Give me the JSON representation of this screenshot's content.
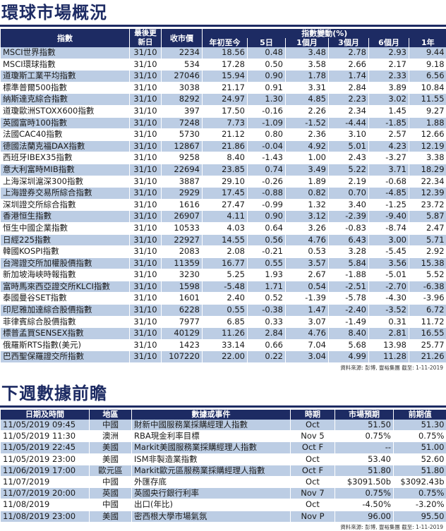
{
  "market": {
    "title": "環球市場概況",
    "headers": {
      "index": "指數",
      "date": "最後更新日",
      "close": "收市價",
      "change": "指數變動(%)",
      "periods": [
        "年初至今",
        "5日",
        "1個月",
        "3個月",
        "6個月",
        "1年"
      ]
    },
    "rows": [
      {
        "name": "MSCI世界指數",
        "date": "31/10",
        "close": "2234",
        "ytd": "18.56",
        "d5": "0.48",
        "m1": "3.48",
        "m3": "2.78",
        "m6": "2.93",
        "y1": "9.44"
      },
      {
        "name": "MSCI環球指數",
        "date": "31/10",
        "close": "534",
        "ytd": "17.28",
        "d5": "0.50",
        "m1": "3.58",
        "m3": "2.66",
        "m6": "2.17",
        "y1": "9.18"
      },
      {
        "name": "道瓊斯工業平均指數",
        "date": "31/10",
        "close": "27046",
        "ytd": "15.94",
        "d5": "0.90",
        "m1": "1.78",
        "m3": "1.74",
        "m6": "2.33",
        "y1": "6.56"
      },
      {
        "name": "標準普爾500指數",
        "date": "31/10",
        "close": "3038",
        "ytd": "21.17",
        "d5": "0.91",
        "m1": "3.31",
        "m3": "2.84",
        "m6": "3.89",
        "y1": "10.84"
      },
      {
        "name": "納斯達克綜合指數",
        "date": "31/10",
        "close": "8292",
        "ytd": "24.97",
        "d5": "1.30",
        "m1": "4.85",
        "m3": "2.23",
        "m6": "3.02",
        "y1": "11.55"
      },
      {
        "name": "道瓊歐洲STOXX600指數",
        "date": "31/10",
        "close": "397",
        "ytd": "17.50",
        "d5": "-0.16",
        "m1": "2.26",
        "m3": "2.34",
        "m6": "1.45",
        "y1": "9.27"
      },
      {
        "name": "英國富時100指數",
        "date": "31/10",
        "close": "7248",
        "ytd": "7.73",
        "d5": "-1.09",
        "m1": "-1.52",
        "m3": "-4.44",
        "m6": "-1.85",
        "y1": "1.88"
      },
      {
        "name": "法國CAC40指數",
        "date": "31/10",
        "close": "5730",
        "ytd": "21.12",
        "d5": "0.80",
        "m1": "2.36",
        "m3": "3.10",
        "m6": "2.57",
        "y1": "12.66"
      },
      {
        "name": "德國法蘭克福DAX指數",
        "date": "31/10",
        "close": "12867",
        "ytd": "21.86",
        "d5": "-0.04",
        "m1": "4.92",
        "m3": "5.01",
        "m6": "4.23",
        "y1": "12.19"
      },
      {
        "name": "西班牙IBEX35指數",
        "date": "31/10",
        "close": "9258",
        "ytd": "8.40",
        "d5": "-1.43",
        "m1": "1.00",
        "m3": "2.43",
        "m6": "-3.27",
        "y1": "3.38"
      },
      {
        "name": "意大利富時MIB指數",
        "date": "31/10",
        "close": "22694",
        "ytd": "23.85",
        "d5": "0.74",
        "m1": "3.49",
        "m3": "5.22",
        "m6": "3.71",
        "y1": "18.29"
      },
      {
        "name": "上海深圳滬深300指數",
        "date": "31/10",
        "close": "3887",
        "ytd": "29.10",
        "d5": "-0.26",
        "m1": "1.89",
        "m3": "2.19",
        "m6": "-0.68",
        "y1": "22.34"
      },
      {
        "name": "上海證券交易所綜合指數",
        "date": "31/10",
        "close": "2929",
        "ytd": "17.45",
        "d5": "-0.88",
        "m1": "0.82",
        "m3": "0.70",
        "m6": "-4.85",
        "y1": "12.39"
      },
      {
        "name": "深圳證交所綜合指數",
        "date": "31/10",
        "close": "1616",
        "ytd": "27.47",
        "d5": "-0.99",
        "m1": "1.32",
        "m3": "3.40",
        "m6": "-1.25",
        "y1": "23.72"
      },
      {
        "name": "香港恒生指數",
        "date": "31/10",
        "close": "26907",
        "ytd": "4.11",
        "d5": "0.90",
        "m1": "3.12",
        "m3": "-2.39",
        "m6": "-9.40",
        "y1": "5.87"
      },
      {
        "name": "恒生中國企業指數",
        "date": "31/10",
        "close": "10533",
        "ytd": "4.03",
        "d5": "0.64",
        "m1": "3.26",
        "m3": "-0.83",
        "m6": "-8.74",
        "y1": "2.47"
      },
      {
        "name": "日經225指數",
        "date": "31/10",
        "close": "22927",
        "ytd": "14.55",
        "d5": "0.56",
        "m1": "4.76",
        "m3": "6.43",
        "m6": "3.00",
        "y1": "5.71"
      },
      {
        "name": "韓國KOSPI指數",
        "date": "31/10",
        "close": "2083",
        "ytd": "2.08",
        "d5": "-0.21",
        "m1": "0.53",
        "m3": "3.28",
        "m6": "-5.45",
        "y1": "2.92"
      },
      {
        "name": "台灣證交所加權股價指數",
        "date": "31/10",
        "close": "11359",
        "ytd": "16.77",
        "d5": "0.55",
        "m1": "3.57",
        "m3": "5.84",
        "m6": "3.56",
        "y1": "15.38"
      },
      {
        "name": "新加坡海峽時報指數",
        "date": "31/10",
        "close": "3230",
        "ytd": "5.25",
        "d5": "1.93",
        "m1": "2.67",
        "m3": "-1.88",
        "m6": "-5.01",
        "y1": "5.52"
      },
      {
        "name": "富時馬來西亞證交所KLCI指數",
        "date": "31/10",
        "close": "1598",
        "ytd": "-5.48",
        "d5": "1.71",
        "m1": "0.54",
        "m3": "-2.51",
        "m6": "-2.70",
        "y1": "-6.38"
      },
      {
        "name": "泰國曼谷SET指數",
        "date": "31/10",
        "close": "1601",
        "ytd": "2.40",
        "d5": "0.52",
        "m1": "-1.39",
        "m3": "-5.78",
        "m6": "-4.30",
        "y1": "-3.96"
      },
      {
        "name": "印尼雅加達綜合股價指數",
        "date": "31/10",
        "close": "6228",
        "ytd": "0.55",
        "d5": "-0.38",
        "m1": "1.47",
        "m3": "-2.40",
        "m6": "-3.52",
        "y1": "6.72"
      },
      {
        "name": "菲律賓綜合股價指數",
        "date": "31/10",
        "close": "7977",
        "ytd": "6.85",
        "d5": "0.33",
        "m1": "3.07",
        "m3": "-1.49",
        "m6": "0.31",
        "y1": "11.72"
      },
      {
        "name": "標普孟買SENSEX指數",
        "date": "31/10",
        "close": "40129",
        "ytd": "11.26",
        "d5": "2.84",
        "m1": "4.76",
        "m3": "8.40",
        "m6": "2.81",
        "y1": "16.55"
      },
      {
        "name": "俄羅斯RTS指數(美元)",
        "date": "31/10",
        "close": "1423",
        "ytd": "33.14",
        "d5": "0.66",
        "m1": "7.04",
        "m3": "5.68",
        "m6": "13.98",
        "y1": "25.77"
      },
      {
        "name": "巴西聖保羅證交所指數",
        "date": "31/10",
        "close": "107220",
        "ytd": "22.00",
        "d5": "0.22",
        "m1": "3.04",
        "m3": "4.99",
        "m6": "11.28",
        "y1": "21.26"
      }
    ],
    "source": "資料來源: 彭博, 豐裕集團 截至: 1-11-2019"
  },
  "events": {
    "title": "下週數據前瞻",
    "headers": {
      "datetime": "日期及時間",
      "region": "地區",
      "event": "數據或事件",
      "period": "時期",
      "forecast": "市場預期",
      "previous": "前期值"
    },
    "rows": [
      {
        "datetime": "11/05/2019 09:45",
        "region": "中國",
        "event": "財新中國服務業採購經理人指數",
        "period": "Oct",
        "forecast": "51.50",
        "previous": "51.30"
      },
      {
        "datetime": "11/05/2019 11:30",
        "region": "澳洲",
        "event": "RBA現金利率目標",
        "period": "Nov 5",
        "forecast": "0.75%",
        "previous": "0.75%"
      },
      {
        "datetime": "11/05/2019 22:45",
        "region": "美國",
        "event": "Markit美國服務業採購經理人指數",
        "period": "Oct F",
        "forecast": "--",
        "previous": "51.00"
      },
      {
        "datetime": "11/05/2019 23:00",
        "region": "美國",
        "event": "ISM非製造業指數",
        "period": "Oct",
        "forecast": "53.40",
        "previous": "52.60"
      },
      {
        "datetime": "11/06/2019 17:00",
        "region": "歐元區",
        "event": "Markit歐元區服務業採購經理人指數",
        "period": "Oct F",
        "forecast": "51.80",
        "previous": "51.80"
      },
      {
        "datetime": "11/07/2019",
        "region": "中國",
        "event": "外匯存底",
        "period": "Oct",
        "forecast": "$3091.50b",
        "previous": "$3092.43b"
      },
      {
        "datetime": "11/07/2019 20:00",
        "region": "英國",
        "event": "英國央行銀行利率",
        "period": "Nov 7",
        "forecast": "0.75%",
        "previous": "0.75%"
      },
      {
        "datetime": "11/08/2019",
        "region": "中國",
        "event": "出口(年比)",
        "period": "Oct",
        "forecast": "-4.50%",
        "previous": "-3.20%"
      },
      {
        "datetime": "11/08/2019 23:00",
        "region": "美國",
        "event": "密西根大學市場氣氛",
        "period": "Nov P",
        "forecast": "96.00",
        "previous": "95.50"
      }
    ],
    "source": "資料來源: 彭博, 豐裕集團 截至: 1-11-2019"
  }
}
